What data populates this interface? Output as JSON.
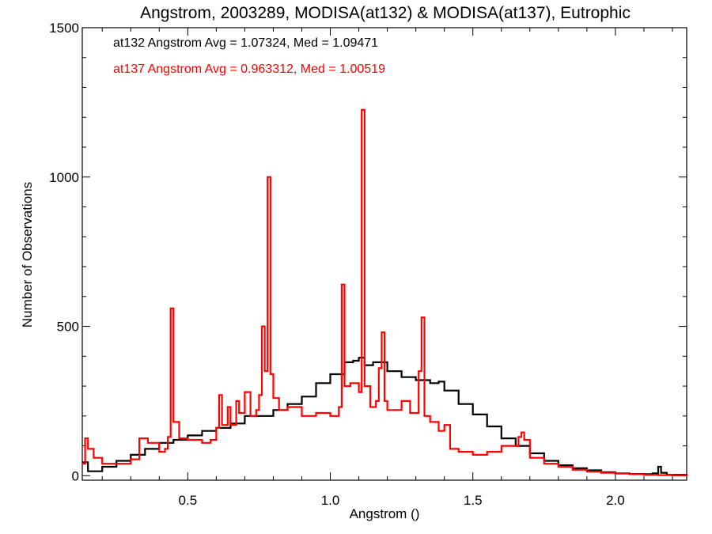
{
  "chart_data": {
    "type": "line",
    "title": "Angstrom, 2003289, MODISA(at132) & MODISA(at137), Eutrophic",
    "xlabel": "Angstrom ()",
    "ylabel": "Number of Observations",
    "xlim": [
      0.13,
      2.25
    ],
    "ylim": [
      -15,
      1500
    ],
    "x_ticks": [
      {
        "value": 0.5,
        "label": "0.5"
      },
      {
        "value": 1.0,
        "label": "1.0"
      },
      {
        "value": 1.5,
        "label": "1.5"
      },
      {
        "value": 2.0,
        "label": "2.0"
      }
    ],
    "y_ticks": [
      {
        "value": 0,
        "label": "0"
      },
      {
        "value": 500,
        "label": "500"
      },
      {
        "value": 1000,
        "label": "1000"
      },
      {
        "value": 1500,
        "label": "1500"
      }
    ],
    "annotations": [
      {
        "text": "at132 Angstrom Avg = 1.07324, Med = 1.09471",
        "color": "#000000"
      },
      {
        "text": "at137 Angstrom Avg = 0.963312, Med = 1.00519",
        "color": "#ff0000"
      }
    ],
    "series": [
      {
        "color": "#000000",
        "step": true,
        "points": [
          [
            0.13,
            45
          ],
          [
            0.15,
            15
          ],
          [
            0.2,
            30
          ],
          [
            0.25,
            50
          ],
          [
            0.3,
            70
          ],
          [
            0.35,
            90
          ],
          [
            0.4,
            110
          ],
          [
            0.45,
            120
          ],
          [
            0.5,
            135
          ],
          [
            0.55,
            150
          ],
          [
            0.6,
            160
          ],
          [
            0.65,
            175
          ],
          [
            0.7,
            200
          ],
          [
            0.75,
            200
          ],
          [
            0.8,
            220
          ],
          [
            0.85,
            240
          ],
          [
            0.9,
            265
          ],
          [
            0.95,
            310
          ],
          [
            1.0,
            340
          ],
          [
            1.05,
            380
          ],
          [
            1.08,
            385
          ],
          [
            1.1,
            395
          ],
          [
            1.12,
            370
          ],
          [
            1.15,
            380
          ],
          [
            1.2,
            350
          ],
          [
            1.25,
            330
          ],
          [
            1.3,
            320
          ],
          [
            1.35,
            310
          ],
          [
            1.38,
            315
          ],
          [
            1.4,
            285
          ],
          [
            1.45,
            240
          ],
          [
            1.5,
            205
          ],
          [
            1.55,
            165
          ],
          [
            1.6,
            125
          ],
          [
            1.65,
            100
          ],
          [
            1.7,
            75
          ],
          [
            1.75,
            50
          ],
          [
            1.8,
            35
          ],
          [
            1.85,
            25
          ],
          [
            1.9,
            18
          ],
          [
            1.95,
            12
          ],
          [
            2.0,
            8
          ],
          [
            2.05,
            6
          ],
          [
            2.1,
            5
          ],
          [
            2.13,
            8
          ],
          [
            2.15,
            30
          ],
          [
            2.16,
            10
          ],
          [
            2.18,
            3
          ],
          [
            2.25,
            0
          ]
        ]
      },
      {
        "color": "#ff0000",
        "step": true,
        "points": [
          [
            0.13,
            40
          ],
          [
            0.14,
            125
          ],
          [
            0.15,
            90
          ],
          [
            0.17,
            60
          ],
          [
            0.2,
            40
          ],
          [
            0.25,
            40
          ],
          [
            0.3,
            55
          ],
          [
            0.33,
            125
          ],
          [
            0.36,
            110
          ],
          [
            0.38,
            110
          ],
          [
            0.4,
            80
          ],
          [
            0.42,
            90
          ],
          [
            0.43,
            130
          ],
          [
            0.44,
            560
          ],
          [
            0.45,
            180
          ],
          [
            0.47,
            125
          ],
          [
            0.5,
            120
          ],
          [
            0.55,
            110
          ],
          [
            0.58,
            120
          ],
          [
            0.6,
            160
          ],
          [
            0.61,
            270
          ],
          [
            0.62,
            170
          ],
          [
            0.64,
            230
          ],
          [
            0.65,
            170
          ],
          [
            0.67,
            250
          ],
          [
            0.68,
            210
          ],
          [
            0.7,
            280
          ],
          [
            0.72,
            200
          ],
          [
            0.74,
            220
          ],
          [
            0.75,
            270
          ],
          [
            0.76,
            500
          ],
          [
            0.77,
            350
          ],
          [
            0.78,
            1000
          ],
          [
            0.79,
            340
          ],
          [
            0.8,
            260
          ],
          [
            0.82,
            220
          ],
          [
            0.85,
            230
          ],
          [
            0.9,
            200
          ],
          [
            0.95,
            210
          ],
          [
            1.0,
            200
          ],
          [
            1.03,
            230
          ],
          [
            1.04,
            640
          ],
          [
            1.05,
            300
          ],
          [
            1.07,
            310
          ],
          [
            1.08,
            310
          ],
          [
            1.1,
            280
          ],
          [
            1.11,
            1225
          ],
          [
            1.12,
            300
          ],
          [
            1.14,
            230
          ],
          [
            1.16,
            250
          ],
          [
            1.17,
            360
          ],
          [
            1.18,
            480
          ],
          [
            1.19,
            250
          ],
          [
            1.2,
            220
          ],
          [
            1.25,
            250
          ],
          [
            1.28,
            210
          ],
          [
            1.3,
            210
          ],
          [
            1.31,
            350
          ],
          [
            1.32,
            530
          ],
          [
            1.33,
            200
          ],
          [
            1.35,
            180
          ],
          [
            1.38,
            150
          ],
          [
            1.4,
            170
          ],
          [
            1.42,
            90
          ],
          [
            1.45,
            80
          ],
          [
            1.5,
            70
          ],
          [
            1.55,
            80
          ],
          [
            1.6,
            100
          ],
          [
            1.65,
            100
          ],
          [
            1.66,
            130
          ],
          [
            1.67,
            145
          ],
          [
            1.68,
            120
          ],
          [
            1.7,
            60
          ],
          [
            1.75,
            40
          ],
          [
            1.8,
            30
          ],
          [
            1.85,
            20
          ],
          [
            1.9,
            14
          ],
          [
            1.95,
            10
          ],
          [
            2.0,
            7
          ],
          [
            2.05,
            5
          ],
          [
            2.1,
            3
          ],
          [
            2.15,
            2
          ],
          [
            2.2,
            1
          ],
          [
            2.25,
            0
          ]
        ]
      }
    ]
  }
}
